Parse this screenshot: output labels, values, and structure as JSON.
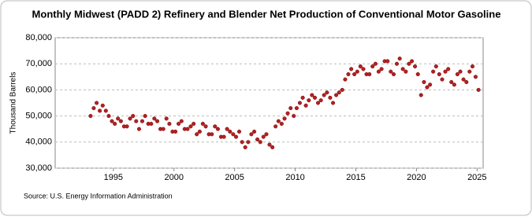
{
  "chart_data": {
    "type": "scatter",
    "title": "Monthly Midwest (PADD 2) Refinery and Blender Net Production of Conventional Motor Gasoline",
    "y_label": "Thousand Barrels",
    "source": "Source: U.S. Energy Information Administration",
    "color": "#b22222",
    "grid": true,
    "xlim": [
      1990.2,
      2025.5
    ],
    "xticks": [
      1995,
      2000,
      2005,
      2010,
      2015,
      2020,
      2025
    ],
    "ylim": [
      30000,
      80000
    ],
    "yticks": [
      {
        "value": 30000,
        "label": "30,000"
      },
      {
        "value": 40000,
        "label": "40,000"
      },
      {
        "value": 50000,
        "label": "50,000"
      },
      {
        "value": 60000,
        "label": "60,000"
      },
      {
        "value": 70000,
        "label": "70,000"
      },
      {
        "value": 80000,
        "label": "80,000"
      }
    ],
    "x": [
      1993.12,
      1993.38,
      1993.62,
      1993.88,
      1994.12,
      1994.38,
      1994.62,
      1994.88,
      1995.12,
      1995.38,
      1995.62,
      1995.88,
      1996.12,
      1996.38,
      1996.62,
      1996.88,
      1997.12,
      1997.38,
      1997.62,
      1997.88,
      1998.12,
      1998.38,
      1998.62,
      1998.88,
      1999.12,
      1999.38,
      1999.62,
      1999.88,
      2000.12,
      2000.38,
      2000.62,
      2000.88,
      2001.12,
      2001.38,
      2001.62,
      2001.88,
      2002.12,
      2002.38,
      2002.62,
      2002.88,
      2003.12,
      2003.38,
      2003.62,
      2003.88,
      2004.12,
      2004.38,
      2004.62,
      2004.88,
      2005.12,
      2005.38,
      2005.62,
      2005.88,
      2006.12,
      2006.38,
      2006.62,
      2006.88,
      2007.12,
      2007.38,
      2007.62,
      2007.88,
      2008.12,
      2008.38,
      2008.62,
      2008.88,
      2009.12,
      2009.38,
      2009.62,
      2009.88,
      2010.12,
      2010.38,
      2010.62,
      2010.88,
      2011.12,
      2011.38,
      2011.62,
      2011.88,
      2012.12,
      2012.38,
      2012.62,
      2012.88,
      2013.12,
      2013.38,
      2013.62,
      2013.88,
      2014.12,
      2014.38,
      2014.62,
      2014.88,
      2015.12,
      2015.38,
      2015.62,
      2015.88,
      2016.12,
      2016.38,
      2016.62,
      2016.88,
      2017.12,
      2017.38,
      2017.62,
      2017.88,
      2018.12,
      2018.38,
      2018.62,
      2018.88,
      2019.12,
      2019.38,
      2019.62,
      2019.88,
      2020.12,
      2020.38,
      2020.62,
      2020.88,
      2021.12,
      2021.38,
      2021.62,
      2021.88,
      2022.12,
      2022.38,
      2022.62,
      2022.88,
      2023.12,
      2023.38,
      2023.62,
      2023.88,
      2024.12,
      2024.38,
      2024.62,
      2024.88,
      2025.12
    ],
    "values": [
      50000,
      53000,
      55000,
      52000,
      54000,
      52000,
      50000,
      48000,
      47000,
      49000,
      48000,
      46000,
      46000,
      49000,
      50000,
      48000,
      45000,
      48000,
      50000,
      47000,
      47000,
      49000,
      48000,
      45000,
      45000,
      49000,
      47000,
      44000,
      44000,
      47000,
      48000,
      45000,
      45000,
      46000,
      47000,
      43000,
      44000,
      47000,
      46000,
      43000,
      43000,
      46000,
      45000,
      42000,
      42000,
      45000,
      44000,
      43000,
      42000,
      44000,
      40000,
      38000,
      40000,
      43000,
      44000,
      41000,
      40000,
      42000,
      43000,
      39000,
      38000,
      46000,
      48000,
      47000,
      49000,
      51000,
      53000,
      50000,
      53000,
      55000,
      57000,
      54000,
      56000,
      58000,
      57000,
      55000,
      56000,
      58000,
      59000,
      57000,
      55000,
      58000,
      59000,
      60000,
      64000,
      66000,
      68000,
      66000,
      67000,
      69000,
      68000,
      66000,
      66000,
      69000,
      70000,
      67000,
      68000,
      71000,
      71000,
      67000,
      66000,
      70000,
      72000,
      68000,
      67000,
      70000,
      71000,
      69000,
      66000,
      58000,
      63000,
      61000,
      62000,
      67000,
      69000,
      66000,
      64000,
      67000,
      68000,
      63000,
      62000,
      66000,
      67000,
      64000,
      63000,
      67000,
      69000,
      65000,
      60000
    ]
  }
}
